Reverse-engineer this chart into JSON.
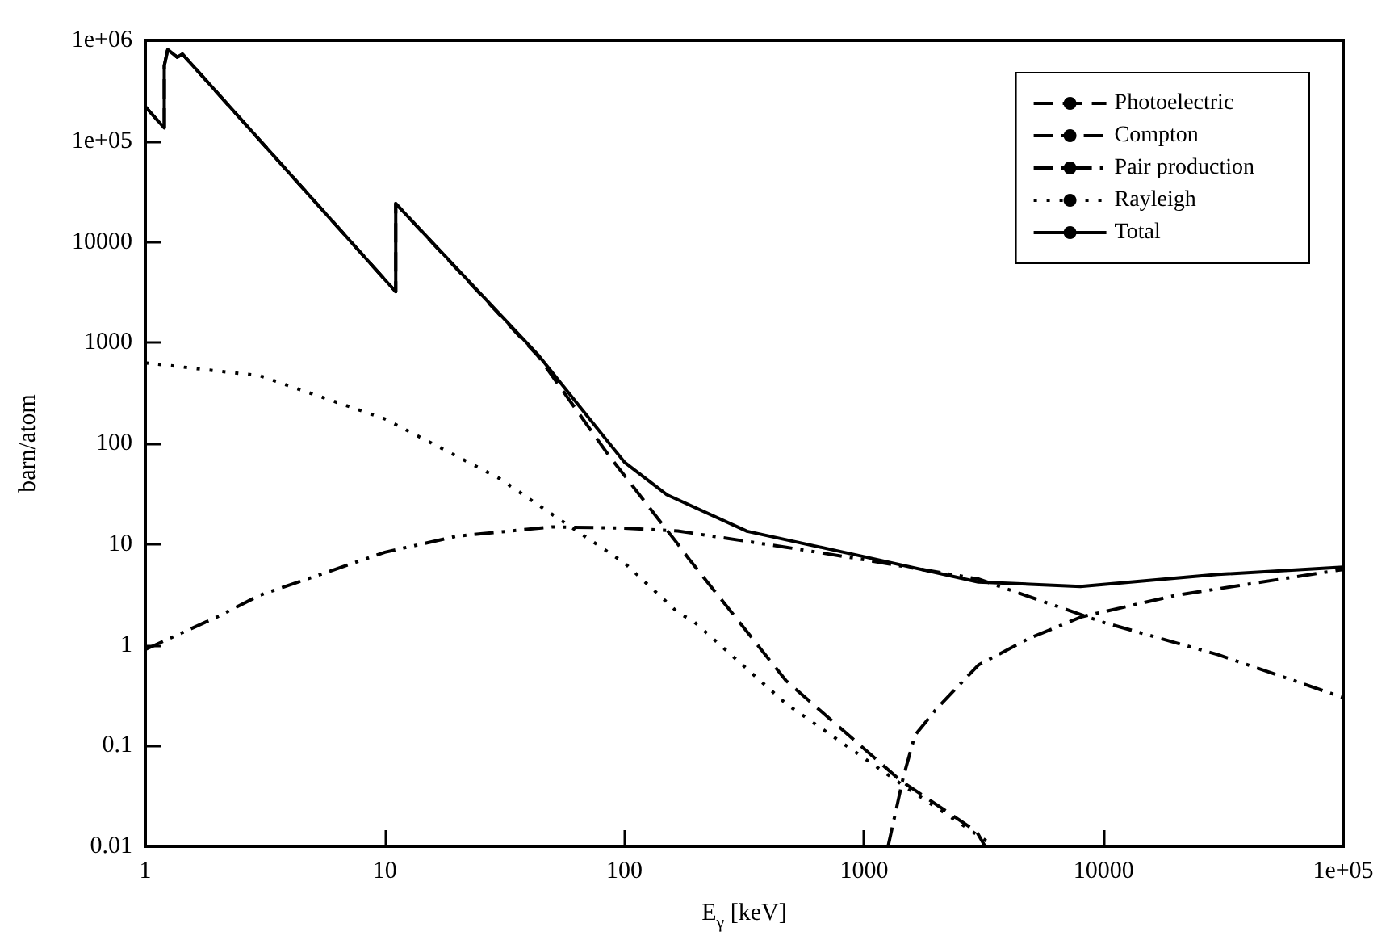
{
  "chart_data": {
    "type": "line",
    "xlabel": "E$_{γ}$ [keV]",
    "ylabel": "barn/atom",
    "log": "xy",
    "grid": false,
    "legend": "top right",
    "marker": "none",
    "xlim": [
      1,
      100000
    ],
    "xticks": [
      1,
      10,
      100,
      1000,
      10000,
      {
        "value": 100000,
        "label": "1e+05"
      }
    ],
    "ylim": [
      0.01,
      1000000
    ],
    "yticks": [
      0.01,
      0.1,
      1,
      10,
      100,
      1000,
      10000,
      {
        "value": 100000,
        "label": "1e+05"
      },
      {
        "value": 1000000,
        "label": "1e+06"
      }
    ],
    "series": [
      {
        "name": "Photoelectric",
        "color": "#000000",
        "line_style": "dashed",
        "x": [
          1,
          1.2,
          1.2,
          1.24,
          1.36,
          1.43,
          11.1,
          11.1,
          43.5,
          86,
          167,
          186,
          473,
          1420,
          2950,
          3200
        ],
        "values": [
          220000,
          135000,
          560000,
          810000,
          680000,
          730000,
          3200,
          24000,
          740,
          76,
          10,
          7.1,
          0.44,
          0.045,
          0.014,
          0.01
        ]
      },
      {
        "name": "Compton",
        "color": "#000000",
        "line_style": "dashdotdot",
        "x": [
          1,
          2,
          3,
          10,
          20,
          50,
          100,
          167,
          473,
          1000,
          3000,
          10000,
          30000,
          100000
        ],
        "values": [
          0.9,
          1.9,
          3.1,
          8.3,
          12,
          14.8,
          14.4,
          13.5,
          9.3,
          7,
          4.5,
          1.67,
          0.8,
          0.3
        ]
      },
      {
        "name": "Pair production",
        "color": "#000000",
        "line_style": "dashdot",
        "x": [
          1260,
          1460,
          1630,
          2000,
          3000,
          4850,
          8100,
          20000,
          100000
        ],
        "values": [
          0.01,
          0.049,
          0.126,
          0.23,
          0.63,
          1.15,
          1.9,
          3.1,
          5.6
        ]
      },
      {
        "name": "Rayleigh",
        "color": "#000000",
        "line_style": "dotted",
        "x": [
          1,
          3,
          10,
          30,
          48,
          100,
          167,
          195,
          473,
          1420,
          3500
        ],
        "values": [
          630,
          470,
          175,
          45,
          21,
          6.5,
          2.1,
          1.7,
          0.26,
          0.042,
          0.01
        ]
      },
      {
        "name": "Total",
        "color": "#000000",
        "line_style": "solid",
        "x": [
          1,
          1.2,
          1.2,
          1.24,
          1.36,
          1.43,
          11.1,
          11.1,
          43.5,
          100,
          150,
          325,
          1000,
          3000,
          8000,
          30000,
          100000
        ],
        "values": [
          220000,
          135000,
          560000,
          810000,
          680000,
          730000,
          3200,
          24000,
          760,
          65,
          31,
          13.4,
          7.5,
          4.2,
          3.8,
          5,
          5.9
        ]
      }
    ]
  }
}
